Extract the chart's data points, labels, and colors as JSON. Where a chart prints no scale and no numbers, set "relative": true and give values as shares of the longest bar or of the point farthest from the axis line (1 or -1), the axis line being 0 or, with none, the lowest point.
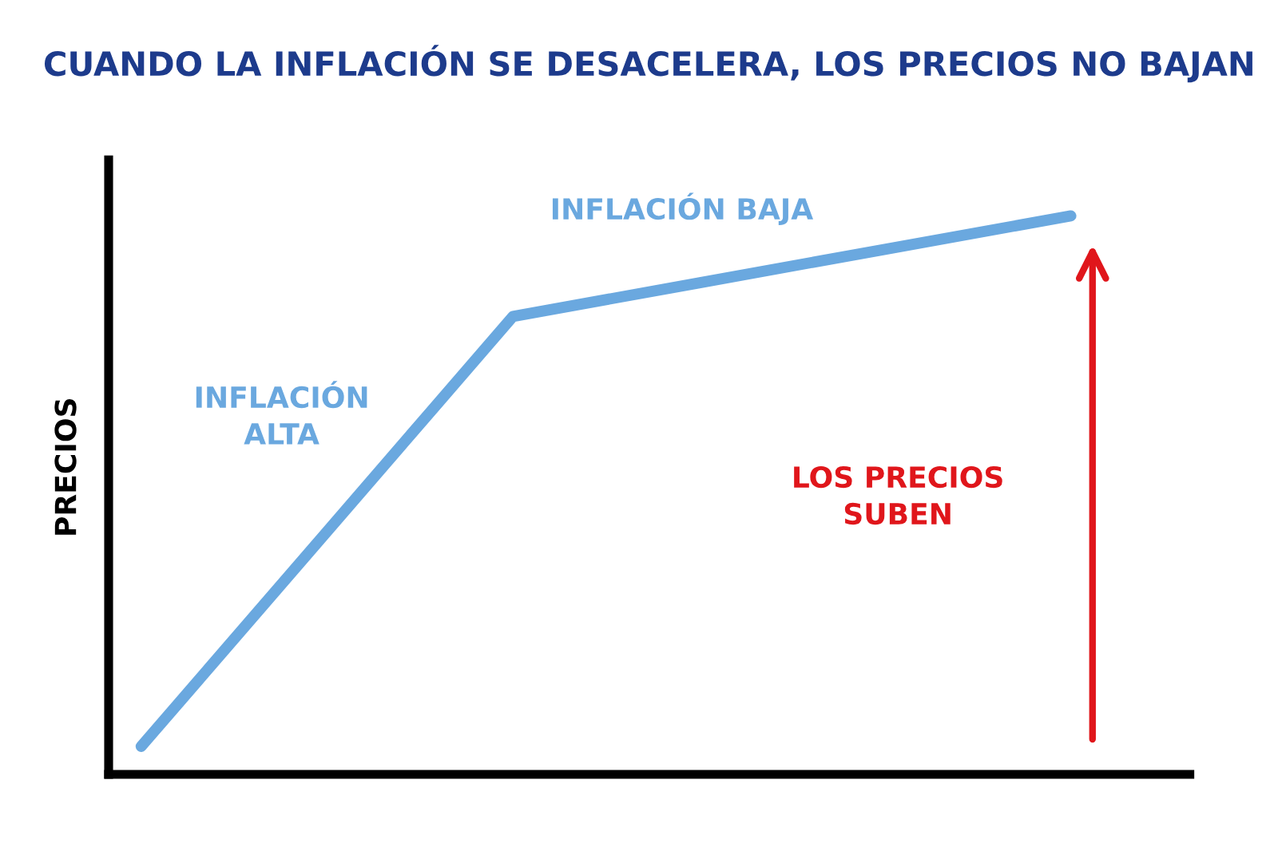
{
  "chart_data": {
    "type": "line",
    "title": "CUANDO LA INFLACIÓN SE DESACELERA, LOS PRECIOS NO BAJAN",
    "ylabel": "PRECIOS",
    "relative": true,
    "tick_labels": false,
    "marker": "none",
    "line_style": "solid",
    "categories": [
      null,
      null,
      null,
      null,
      null,
      null
    ],
    "series": [
      {
        "color": "#6aa8df",
        "values": [
          0.05,
          0.435,
          0.82,
          0.88,
          0.94,
          1.0
        ]
      }
    ],
    "annotations": [
      "INFLACIÓN ALTA",
      "INFLACIÓN BAJA",
      "LOS PRECIOS SUBEN"
    ]
  }
}
